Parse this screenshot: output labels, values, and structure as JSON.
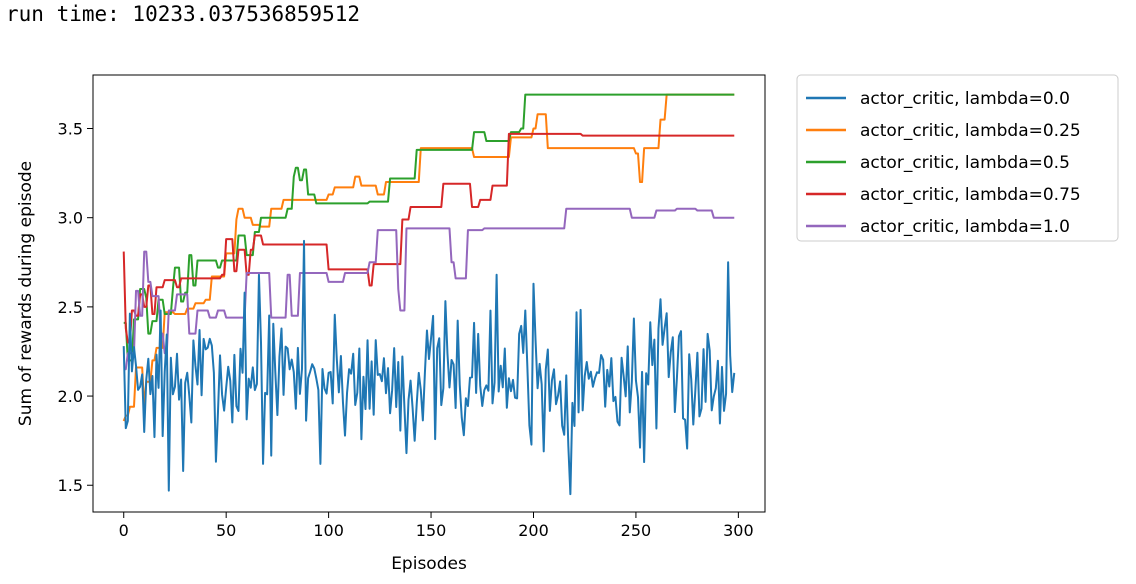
{
  "output": {
    "run_time_text": "run time: 10233.037536859512"
  },
  "chart_data": {
    "type": "line",
    "title": "",
    "xlabel": "Episodes",
    "ylabel": "Sum of rewards during episode",
    "xlim": [
      -15,
      313
    ],
    "ylim": [
      1.35,
      3.8
    ],
    "xticks": [
      0,
      50,
      100,
      150,
      200,
      250,
      300
    ],
    "yticks": [
      1.5,
      2.0,
      2.5,
      3.0,
      3.5
    ],
    "grid": false,
    "legend_placement": "outside-right-top",
    "series": [
      {
        "name": "actor_critic, lambda=0.0",
        "color": "#1f77b4",
        "style": "noisy",
        "seed": 7,
        "base": 2.1,
        "spread": 0.55,
        "anchors": [
          [
            0,
            2.28
          ],
          [
            1,
            1.82
          ],
          [
            2,
            1.86
          ],
          [
            15,
            1.77
          ],
          [
            18,
            2.48
          ],
          [
            22,
            1.47
          ],
          [
            24,
            2.01
          ],
          [
            29,
            1.58
          ],
          [
            59,
            2.58
          ],
          [
            66,
            2.68
          ],
          [
            68,
            1.62
          ],
          [
            88,
            2.87
          ],
          [
            90,
            2.1
          ],
          [
            96,
            1.62
          ],
          [
            138,
            1.68
          ],
          [
            178,
            2.03
          ],
          [
            182,
            2.68
          ],
          [
            188,
            2.1
          ],
          [
            196,
            2.48
          ],
          [
            200,
            2.63
          ],
          [
            205,
            1.69
          ],
          [
            210,
            2.15
          ],
          [
            218,
            1.45
          ],
          [
            221,
            2.47
          ],
          [
            230,
            2.1
          ],
          [
            254,
            1.63
          ],
          [
            264,
            2.38
          ],
          [
            270,
            2.1
          ],
          [
            287,
            1.92
          ],
          [
            295,
            2.75
          ],
          [
            298,
            2.13
          ]
        ]
      },
      {
        "name": "actor_critic, lambda=0.25",
        "color": "#ff7f0e",
        "style": "step",
        "points": [
          [
            0,
            1.86
          ],
          [
            1,
            1.89
          ],
          [
            3,
            1.94
          ],
          [
            6,
            2.16
          ],
          [
            10,
            1.94
          ],
          [
            11,
            2.08
          ],
          [
            14,
            2.2
          ],
          [
            16,
            2.27
          ],
          [
            20,
            2.47
          ],
          [
            25,
            2.46
          ],
          [
            31,
            2.49
          ],
          [
            35,
            2.52
          ],
          [
            40,
            2.54
          ],
          [
            43,
            2.67
          ],
          [
            50,
            2.8
          ],
          [
            55,
            2.99
          ],
          [
            56,
            3.05
          ],
          [
            59,
            3.0
          ],
          [
            63,
            2.96
          ],
          [
            67,
            2.95
          ],
          [
            72,
            3.05
          ],
          [
            78,
            3.1
          ],
          [
            100,
            3.13
          ],
          [
            103,
            3.17
          ],
          [
            113,
            3.23
          ],
          [
            116,
            3.18
          ],
          [
            124,
            3.13
          ],
          [
            128,
            3.2
          ],
          [
            145,
            3.39
          ],
          [
            171,
            3.34
          ],
          [
            189,
            3.45
          ],
          [
            200,
            3.5
          ],
          [
            202,
            3.58
          ],
          [
            207,
            3.39
          ],
          [
            250,
            3.36
          ],
          [
            252,
            3.2
          ],
          [
            254,
            3.39
          ],
          [
            262,
            3.55
          ],
          [
            265,
            3.69
          ],
          [
            298,
            3.69
          ]
        ]
      },
      {
        "name": "actor_critic, lambda=0.5",
        "color": "#2ca02c",
        "style": "step",
        "points": [
          [
            0,
            2.41
          ],
          [
            2,
            2.2
          ],
          [
            5,
            2.43
          ],
          [
            8,
            2.6
          ],
          [
            11,
            2.55
          ],
          [
            12,
            2.35
          ],
          [
            14,
            2.42
          ],
          [
            17,
            2.54
          ],
          [
            20,
            2.46
          ],
          [
            24,
            2.6
          ],
          [
            25,
            2.72
          ],
          [
            28,
            2.53
          ],
          [
            30,
            2.58
          ],
          [
            32,
            2.79
          ],
          [
            34,
            2.62
          ],
          [
            36,
            2.76
          ],
          [
            46,
            2.72
          ],
          [
            48,
            2.76
          ],
          [
            56,
            2.9
          ],
          [
            60,
            2.79
          ],
          [
            64,
            2.92
          ],
          [
            67,
            3.0
          ],
          [
            80,
            3.05
          ],
          [
            83,
            3.23
          ],
          [
            84,
            3.28
          ],
          [
            86,
            3.21
          ],
          [
            88,
            3.27
          ],
          [
            90,
            3.13
          ],
          [
            94,
            3.08
          ],
          [
            113,
            3.08
          ],
          [
            120,
            3.09
          ],
          [
            130,
            3.22
          ],
          [
            143,
            3.38
          ],
          [
            164,
            3.38
          ],
          [
            171,
            3.48
          ],
          [
            177,
            3.43
          ],
          [
            189,
            3.48
          ],
          [
            194,
            3.5
          ],
          [
            196,
            3.69
          ],
          [
            298,
            3.69
          ]
        ]
      },
      {
        "name": "actor_critic, lambda=0.75",
        "color": "#d62728",
        "style": "step",
        "points": [
          [
            0,
            2.81
          ],
          [
            1,
            2.38
          ],
          [
            2,
            2.3
          ],
          [
            4,
            2.48
          ],
          [
            6,
            2.45
          ],
          [
            8,
            2.57
          ],
          [
            10,
            2.5
          ],
          [
            12,
            2.62
          ],
          [
            14,
            2.46
          ],
          [
            16,
            2.61
          ],
          [
            20,
            2.65
          ],
          [
            26,
            2.61
          ],
          [
            28,
            2.66
          ],
          [
            48,
            2.68
          ],
          [
            50,
            2.88
          ],
          [
            54,
            2.7
          ],
          [
            56,
            2.82
          ],
          [
            60,
            2.68
          ],
          [
            62,
            2.82
          ],
          [
            64,
            2.9
          ],
          [
            68,
            2.85
          ],
          [
            100,
            2.71
          ],
          [
            112,
            2.71
          ],
          [
            120,
            2.62
          ],
          [
            122,
            2.74
          ],
          [
            130,
            2.74
          ],
          [
            136,
            2.99
          ],
          [
            140,
            3.06
          ],
          [
            150,
            3.06
          ],
          [
            156,
            3.19
          ],
          [
            170,
            3.06
          ],
          [
            174,
            3.1
          ],
          [
            180,
            3.18
          ],
          [
            188,
            3.47
          ],
          [
            200,
            3.47
          ],
          [
            224,
            3.46
          ],
          [
            298,
            3.46
          ]
        ]
      },
      {
        "name": "actor_critic, lambda=1.0",
        "color": "#9467bd",
        "style": "step",
        "points": [
          [
            0,
            2.15
          ],
          [
            2,
            2.24
          ],
          [
            4,
            2.24
          ],
          [
            6,
            2.59
          ],
          [
            8,
            2.45
          ],
          [
            10,
            2.81
          ],
          [
            12,
            2.64
          ],
          [
            14,
            2.56
          ],
          [
            18,
            2.35
          ],
          [
            20,
            2.24
          ],
          [
            22,
            2.48
          ],
          [
            26,
            2.57
          ],
          [
            32,
            2.35
          ],
          [
            36,
            2.48
          ],
          [
            42,
            2.44
          ],
          [
            46,
            2.48
          ],
          [
            50,
            2.44
          ],
          [
            60,
            2.69
          ],
          [
            72,
            2.44
          ],
          [
            80,
            2.68
          ],
          [
            82,
            2.45
          ],
          [
            86,
            2.69
          ],
          [
            96,
            2.69
          ],
          [
            100,
            2.64
          ],
          [
            108,
            2.69
          ],
          [
            120,
            2.75
          ],
          [
            124,
            2.93
          ],
          [
            134,
            2.6
          ],
          [
            135,
            2.48
          ],
          [
            138,
            2.94
          ],
          [
            160,
            2.75
          ],
          [
            162,
            2.66
          ],
          [
            168,
            2.93
          ],
          [
            176,
            2.94
          ],
          [
            200,
            2.94
          ],
          [
            212,
            2.94
          ],
          [
            216,
            3.05
          ],
          [
            240,
            3.05
          ],
          [
            248,
            3.0
          ],
          [
            256,
            3.0
          ],
          [
            260,
            3.04
          ],
          [
            270,
            3.05
          ],
          [
            280,
            3.04
          ],
          [
            288,
            3.0
          ],
          [
            298,
            3.0
          ]
        ]
      }
    ]
  }
}
